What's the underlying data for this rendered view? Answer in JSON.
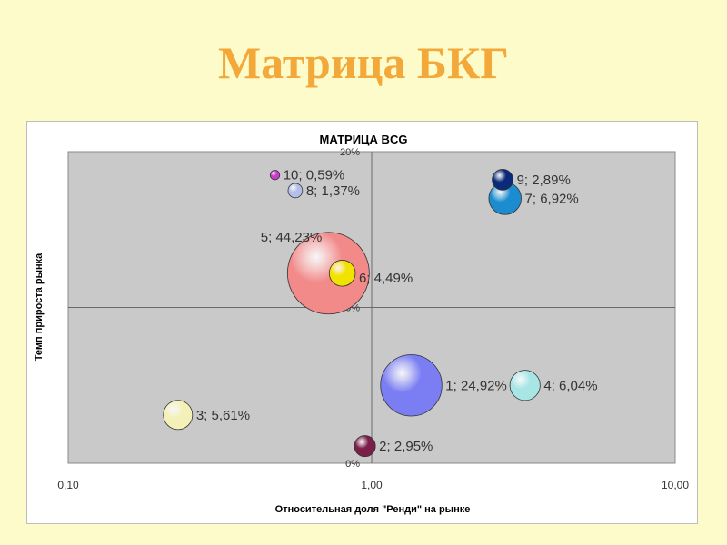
{
  "slide_title": "Матрица БКГ",
  "chart_data": {
    "type": "bubble",
    "title": "МАТРИЦА BCG",
    "xlabel": "Относительная доля \"Ренди\" на рынке",
    "ylabel": "Темп прироста рынка",
    "x_scale": "log",
    "xlim": [
      0.1,
      10
    ],
    "ylim": [
      0,
      20
    ],
    "x_ticks": [
      "0,10",
      "1,00",
      "10,00"
    ],
    "y_ticks": [
      "0%",
      "10%",
      "20%"
    ],
    "points": [
      {
        "label": "1; 24,92%",
        "x": 1.35,
        "y": 5.0,
        "share": 24.92,
        "color": "#7a7ef2"
      },
      {
        "label": "2; 2,95%",
        "x": 0.95,
        "y": 1.1,
        "share": 2.95,
        "color": "#7a1f4a"
      },
      {
        "label": "3; 5,61%",
        "x": 0.23,
        "y": 3.1,
        "share": 5.61,
        "color": "#f3f1b8"
      },
      {
        "label": "4; 6,04%",
        "x": 3.2,
        "y": 5.0,
        "share": 6.04,
        "color": "#a8e6e6"
      },
      {
        "label": "5; 44,23%",
        "x": 0.72,
        "y": 12.2,
        "share": 44.23,
        "color": "#f28a8a"
      },
      {
        "label": "6; 4,49%",
        "x": 0.8,
        "y": 12.2,
        "share": 4.49,
        "color": "#f2e200"
      },
      {
        "label": "7; 6,92%",
        "x": 2.75,
        "y": 17.0,
        "share": 6.92,
        "color": "#1a8ccf"
      },
      {
        "label": "8; 1,37%",
        "x": 0.56,
        "y": 17.5,
        "share": 1.37,
        "color": "#b3bfe8"
      },
      {
        "label": "9; 2,89%",
        "x": 2.7,
        "y": 18.2,
        "share": 2.89,
        "color": "#0a2a7a"
      },
      {
        "label": "10; 0,59%",
        "x": 0.48,
        "y": 18.5,
        "share": 0.59,
        "color": "#cc3ad0"
      }
    ],
    "grid": false,
    "plot_background": "#c9c9c9"
  }
}
